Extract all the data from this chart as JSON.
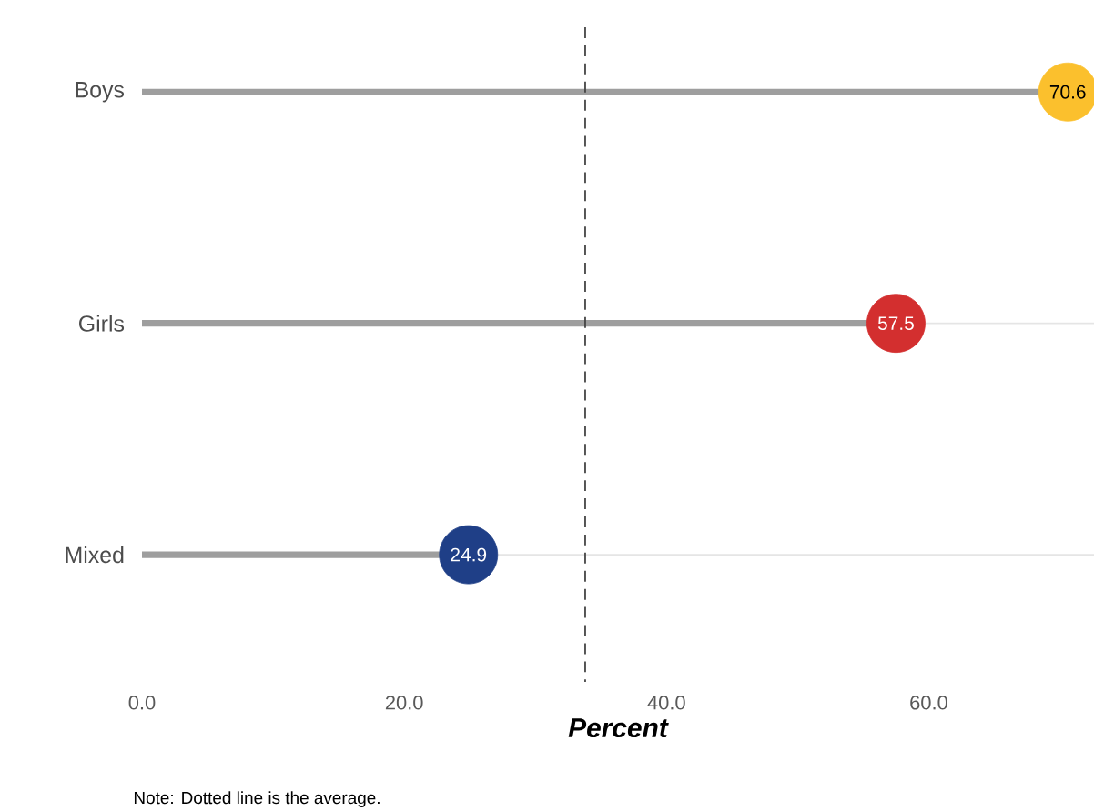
{
  "chart_data": {
    "type": "lollipop",
    "orientation": "horizontal",
    "categories": [
      "Boys",
      "Girls",
      "Mixed"
    ],
    "values": [
      70.6,
      57.5,
      24.9
    ],
    "colors": [
      "#fbc02d",
      "#d32f2f",
      "#1f3f87"
    ],
    "data_labels": true,
    "xlabel": "Percent",
    "xlim": [
      0,
      72.6
    ],
    "xticks": [
      {
        "value": 0,
        "label": "0.0"
      },
      {
        "value": 20,
        "label": "20.0"
      },
      {
        "value": 40,
        "label": "40.0"
      },
      {
        "value": 60,
        "label": "60.0"
      }
    ],
    "grid": "y",
    "ref_lines": [
      {
        "axis": "x",
        "value": 33.8,
        "line_style": "dashed",
        "color": "#444444"
      }
    ],
    "annotations": [
      "Note: Dotted line is the average."
    ]
  }
}
